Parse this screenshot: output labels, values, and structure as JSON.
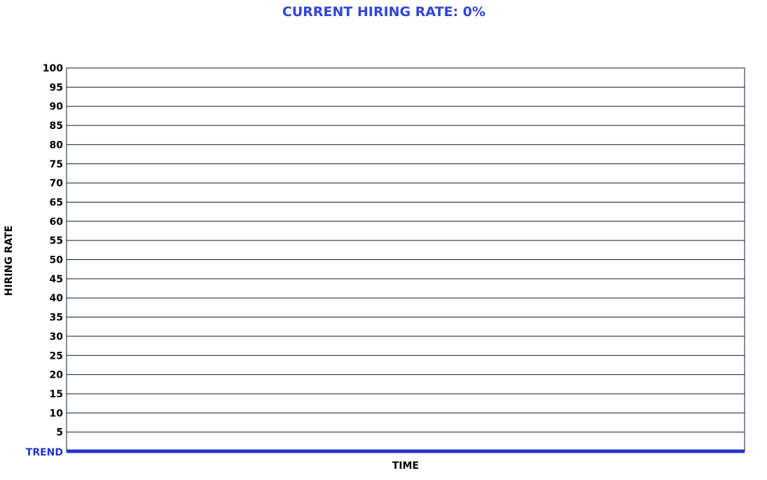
{
  "chart_data": {
    "type": "line",
    "title": "CURRENT HIRING RATE: 0%",
    "xlabel": "TIME",
    "ylabel": "HIRING RATE",
    "ylim": [
      0,
      100
    ],
    "yticks": [
      100,
      95,
      90,
      85,
      80,
      75,
      70,
      65,
      60,
      55,
      50,
      45,
      40,
      35,
      30,
      25,
      20,
      15,
      10,
      5
    ],
    "baseline_label": "TREND",
    "grid": "horizontal",
    "series": [
      {
        "values": [
          0,
          0
        ]
      }
    ],
    "colors": {
      "title": "#3344d6",
      "trend": "#2233cc",
      "grid": "#0d1a3a",
      "text": "#000000"
    }
  }
}
